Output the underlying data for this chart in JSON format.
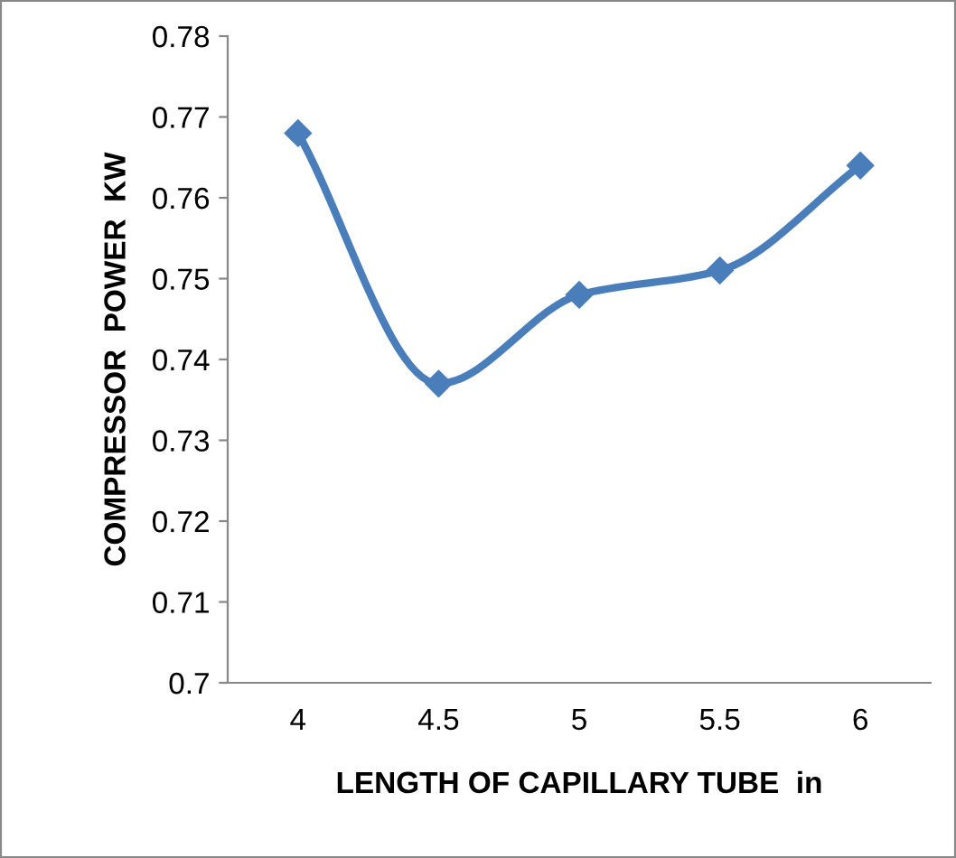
{
  "chart_data": {
    "type": "line",
    "categories": [
      "4",
      "4.5",
      "5",
      "5.5",
      "6"
    ],
    "series": [
      {
        "color": "#4a7ebb",
        "values": [
          0.768,
          0.737,
          0.748,
          0.751,
          0.764
        ]
      }
    ],
    "ylabel": "COMPRESSOR  POWER  KW",
    "xlabel": "LENGTH OF CAPILLARY TUBE  in",
    "ylim": [
      0.7,
      0.78
    ],
    "yticks": [
      0.7,
      0.71,
      0.72,
      0.73,
      0.74,
      0.75,
      0.76,
      0.77,
      0.78
    ],
    "grid": false,
    "legend": false,
    "marker": "diamond",
    "line_style": "solid"
  }
}
